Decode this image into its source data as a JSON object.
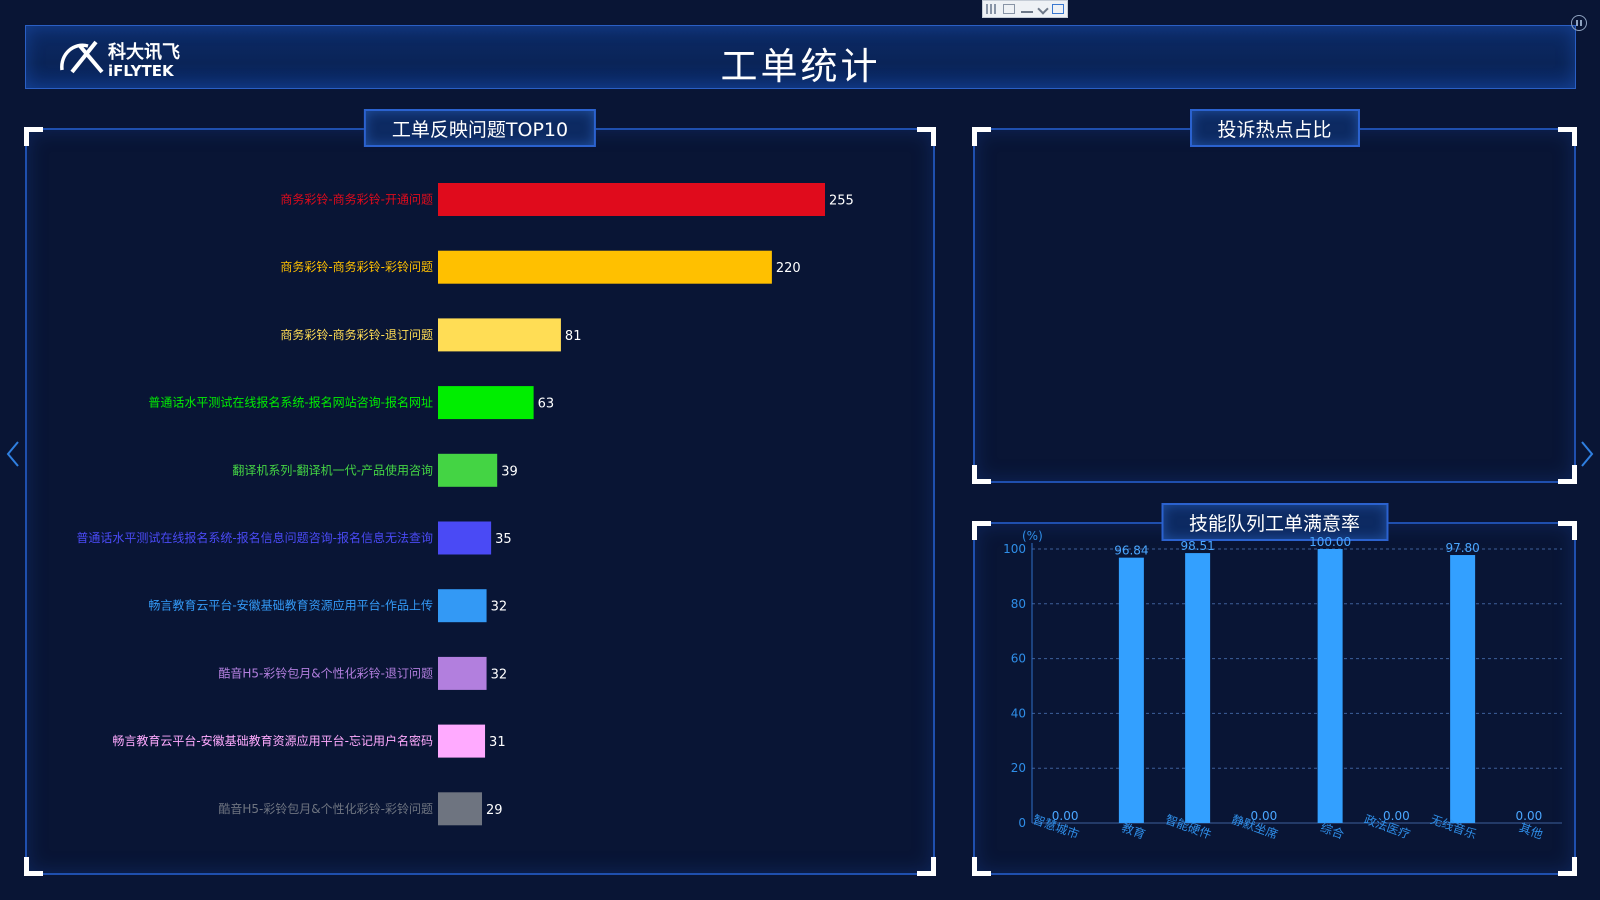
{
  "header": {
    "title": "工单统计",
    "logo_cn": "科大讯飞",
    "logo_en": "iFLYTEK"
  },
  "panels": {
    "top10": {
      "title": "工单反映问题TOP10"
    },
    "hotspot": {
      "title": "投诉热点占比"
    },
    "satisfaction": {
      "title": "技能队列工单满意率"
    }
  },
  "icons": {
    "nav_left": "chevron-left-icon",
    "nav_right": "chevron-right-icon",
    "pause": "pause-icon",
    "toolbar": [
      "grid-icon",
      "shrink-icon",
      "minimize-icon",
      "chevron-down-icon",
      "window-icon"
    ]
  },
  "chart_data": [
    {
      "type": "bar",
      "orientation": "horizontal",
      "title": "工单反映问题TOP10",
      "categories": [
        "商务彩铃-商务彩铃-开通问题",
        "商务彩铃-商务彩铃-彩铃问题",
        "商务彩铃-商务彩铃-退订问题",
        "普通话水平测试在线报名系统-报名网站咨询-报名网址",
        "翻译机系列-翻译机一代-产品使用咨询",
        "普通话水平测试在线报名系统-报名信息问题咨询-报名信息无法查询",
        "畅言教育云平台-安徽基础教育资源应用平台-作品上传",
        "酷音H5-彩铃包月&个性化彩铃-退订问题",
        "畅言教育云平台-安徽基础教育资源应用平台-忘记用户名密码",
        "酷音H5-彩铃包月&个性化彩铃-彩铃问题"
      ],
      "values": [
        255,
        220,
        81,
        63,
        39,
        35,
        32,
        32,
        31,
        29
      ],
      "colors": [
        "#e00b1c",
        "#ffc000",
        "#ffdd55",
        "#00ee00",
        "#44d444",
        "#4a4af5",
        "#3399f5",
        "#b27fde",
        "#ffaaff",
        "#6e7480"
      ],
      "xlim": [
        0,
        255
      ]
    },
    {
      "type": "bar",
      "title": "技能队列工单满意率",
      "ylabel": "(%)",
      "categories": [
        "智慧城市",
        "教育",
        "智能硬件",
        "静默坐席",
        "综合",
        "政法医疗",
        "无线音乐",
        "其他"
      ],
      "values": [
        0.0,
        96.84,
        98.51,
        0.0,
        100.0,
        0.0,
        97.8,
        0.0
      ],
      "value_labels": [
        "0.00",
        "96.84",
        "98.51",
        "0.00",
        "100.00",
        "0.00",
        "97.80",
        "0.00"
      ],
      "ylim": [
        0,
        100
      ],
      "yticks": [
        "0",
        "20",
        "40",
        "60",
        "80",
        "100"
      ],
      "grid": true,
      "color": "#33a0ff"
    }
  ]
}
